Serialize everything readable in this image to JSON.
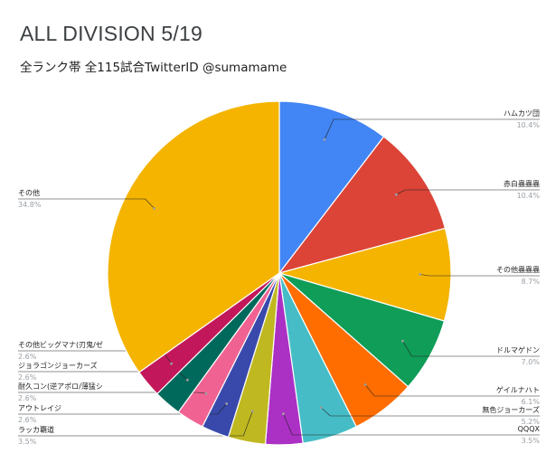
{
  "title": "ALL DIVISION 5/19",
  "subtitle": "全ランク帯 全115試合TwitterID @sumamame",
  "chart_data": {
    "type": "pie",
    "title": "ALL DIVISION 5/19",
    "subtitle": "全ランク帯 全115試合TwitterID @sumamame",
    "slices": [
      {
        "label": "ハムカツ団",
        "value": 10.4,
        "pct_label": "10.4%",
        "color": "#4285f4",
        "side": "right"
      },
      {
        "label": "赤白蟲蟲蟲",
        "value": 10.4,
        "pct_label": "10.4%",
        "color": "#db4437",
        "side": "right"
      },
      {
        "label": "その他蟲蟲蟲",
        "value": 8.7,
        "pct_label": "8.7%",
        "color": "#f4b400",
        "side": "right"
      },
      {
        "label": "ドルマゲドン",
        "value": 7.0,
        "pct_label": "7.0%",
        "color": "#0f9d58",
        "side": "right"
      },
      {
        "label": "ゲイルナハト",
        "value": 6.1,
        "pct_label": "6.1%",
        "color": "#ff6d01",
        "side": "right"
      },
      {
        "label": "無色ジョーカーズ",
        "value": 5.2,
        "pct_label": "5.2%",
        "color": "#46bdc6",
        "side": "right"
      },
      {
        "label": "QQQX",
        "value": 3.5,
        "pct_label": "3.5%",
        "color": "#ab30c4",
        "side": "right"
      },
      {
        "label": "ラッカ覇道",
        "value": 3.5,
        "pct_label": "3.5%",
        "color": "#c0b820",
        "side": "left"
      },
      {
        "label": "アウトレイジ",
        "value": 2.6,
        "pct_label": "2.6%",
        "color": "#3949ab",
        "side": "left"
      },
      {
        "label": "耐久コン(逆アポロ/薄猛シ",
        "value": 2.6,
        "pct_label": "2.6%",
        "color": "#f06292",
        "side": "left"
      },
      {
        "label": "ジョラゴンジョーカーズ",
        "value": 2.6,
        "pct_label": "2.6%",
        "color": "#00695c",
        "side": "left"
      },
      {
        "label": "その他ビッグマナ(刃鬼/ゼ",
        "value": 2.6,
        "pct_label": "2.6%",
        "color": "#c2185b",
        "side": "left"
      },
      {
        "label": "その他",
        "value": 34.8,
        "pct_label": "34.8%",
        "color": "#f4b400",
        "side": "left"
      }
    ]
  }
}
